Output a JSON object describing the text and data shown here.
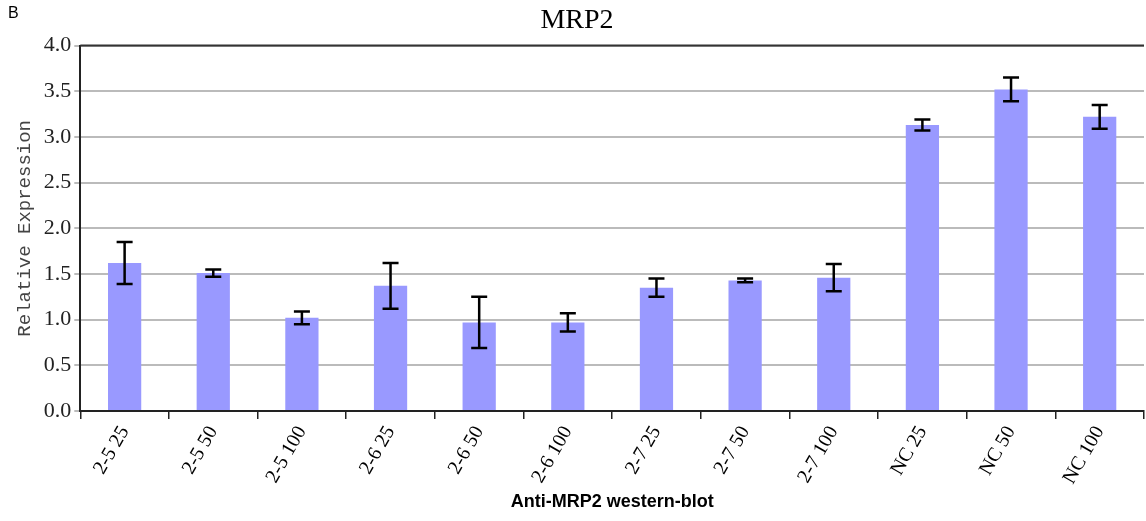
{
  "chart_data": {
    "type": "bar",
    "title": "MRP2",
    "xlabel": "Anti-MRP2 western-blot",
    "ylabel": "Relative Expression",
    "annotations": [
      "B"
    ],
    "categories": [
      "2-5 25",
      "2-5 50",
      "2-5 100",
      "2-6 25",
      "2-6 50",
      "2-6 100",
      "2-7 25",
      "2-7 50",
      "2-7 100",
      "NC 25",
      "NC 50",
      "NC 100"
    ],
    "values": [
      1.62,
      1.51,
      1.02,
      1.37,
      0.97,
      0.97,
      1.35,
      1.43,
      1.46,
      3.13,
      3.52,
      3.22
    ],
    "errors": [
      0.23,
      0.04,
      0.07,
      0.25,
      0.28,
      0.1,
      0.1,
      0.02,
      0.15,
      0.06,
      0.13,
      0.13
    ],
    "color": "#9999ff",
    "ylim": [
      0,
      4
    ],
    "yticks": [
      {
        "value": 0,
        "label": "0.0"
      },
      {
        "value": 0.5,
        "label": "0.5"
      },
      {
        "value": 1,
        "label": "1.0"
      },
      {
        "value": 1.5,
        "label": "1.5"
      },
      {
        "value": 2,
        "label": "2.0"
      },
      {
        "value": 2.5,
        "label": "2.5"
      },
      {
        "value": 3,
        "label": "3.0"
      },
      {
        "value": 3.5,
        "label": "3.5"
      },
      {
        "value": 4,
        "label": "4.0"
      }
    ],
    "grid": "y",
    "legend": false
  }
}
